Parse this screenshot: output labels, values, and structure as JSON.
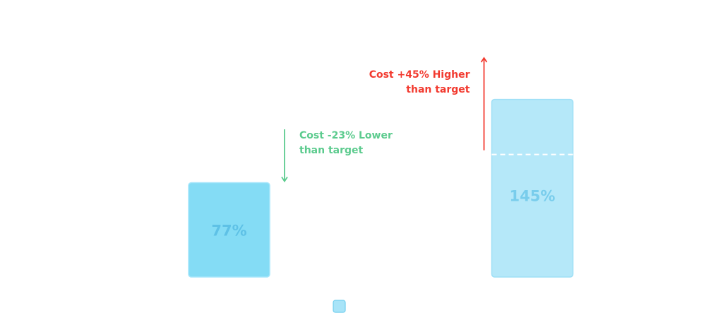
{
  "chart_data": {
    "type": "bar",
    "categories": [
      "",
      ""
    ],
    "values": [
      77,
      145
    ],
    "value_labels": [
      "77%",
      "145%"
    ],
    "target_value": 100,
    "ylim": [
      0,
      175
    ],
    "title": "",
    "xlabel": "",
    "ylabel": "",
    "grid": false,
    "legend": {
      "placement": "bottom-center",
      "entries": [
        ""
      ]
    },
    "annotations": [
      {
        "bar_index": 0,
        "direction": "down",
        "lines": [
          "Cost -23% Lower",
          "than target"
        ]
      },
      {
        "bar_index": 1,
        "direction": "up",
        "lines": [
          "Cost +45% Higher",
          "than target"
        ]
      }
    ]
  },
  "colors": {
    "bar_low_fill": "#84dcf5",
    "bar_low_stroke": "#a6e6fb",
    "bar_high_fill": "#b5e8f9",
    "bar_high_stroke": "#9edff6",
    "bar_label": "#5ec1e6",
    "bar_label_high": "#79cdec",
    "lower_annotation": "#5ccb8e",
    "higher_annotation": "#f23a2f",
    "target_line": "#ffffff",
    "legend_swatch": "#a8e4f8",
    "legend_swatch_stroke": "#70ceee"
  }
}
